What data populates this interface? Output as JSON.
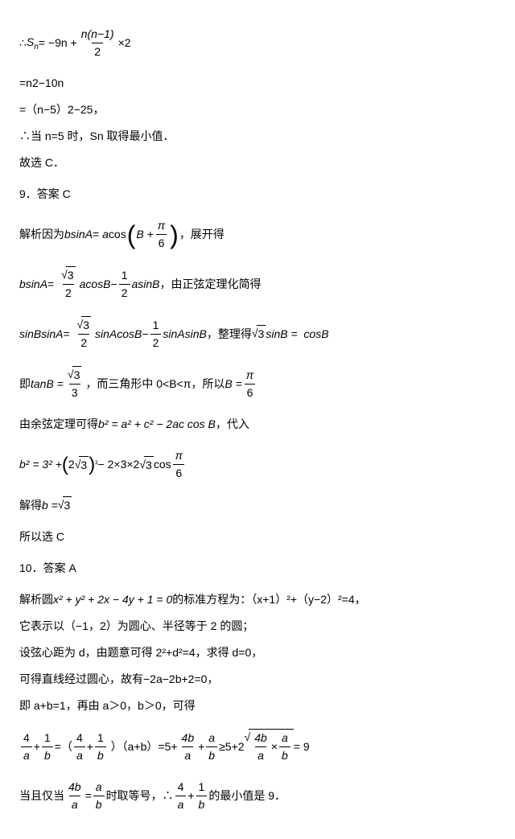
{
  "colors": {
    "text": "#000000",
    "background": "#ffffff"
  },
  "fonts": {
    "body_size_pt": 10.5,
    "family": "Microsoft YaHei"
  },
  "l1a": "∴",
  "l1b": "= −9n +",
  "f1n": "n(n−1)",
  "f1d": "2",
  "l1c": "×2",
  "sn": "S",
  "sub_n": "n",
  "l2": "=n2−10n",
  "l3": "=（n−5）2−25，",
  "l4": "∴当 n=5 时，Sn 取得最小值．",
  "l5": "故选 C．",
  "q9": "9．答案 C",
  "l6a": "解析因为",
  "bsinA": "b",
  "sinA": "sinA",
  "eq": " = ",
  "acos": "a",
  "cos": "cos",
  "B_plus": "B +",
  "pi": "π",
  "six": "6",
  "l6b": "，展开得",
  "l7a": "b",
  "l7eq": " = ",
  "rt3": "3",
  "two": "2",
  "acosB": "acosB",
  "minus": " − ",
  "half_n": "1",
  "half_d": "2",
  "asinB": "asinB",
  "l7b": "，由正弦定理化简得",
  "l8a": "sinBsinA",
  "sinAcosB": "sinAcosB",
  "sinAsinB": "sinAsinB",
  "l8b": "，整理得",
  "sinB_eq": "sinB = ",
  "cosB": "cosB",
  "l9a": "即",
  "tanB": "tanB =",
  "three": "3",
  "l9b": "，而三角形中 0<B<π，所以",
  "B_eq": "B =",
  "l10": "由余弦定理可得",
  "bsq": "b² = a² + c² − 2ac cos B",
  "l10b": "  ，代入",
  "l11a": "b² = 3² +",
  "two_rt3": "2",
  "sq": "²",
  "l11b": " − 2×3×2",
  "cos_pi6": "cos",
  "l12a": "解得",
  "b_eq": "b =",
  "l13": "所以选 C",
  "q10": "10．答案 A",
  "l14a": "解析圆",
  "circ_eq": "x² + y² + 2x − 4y + 1 = 0",
  "l14b": " 的标准方程为：（x+1）²+（y−2）²=4，",
  "l15": "它表示以（−1，2）为圆心、半径等于 2 的圆；",
  "l16": "设弦心距为 d，由题意可得 2²+d²=4，求得 d=0，",
  "l17": "可得直线经过圆心，故有−2a−2b+2=0，",
  "l18": "即 a+b=1，再由 a＞0，b＞0，可得",
  "l19pre": "=（",
  "four": "4",
  "a": "a",
  "one": "1",
  "b": "b",
  "l19mid": "）（a+b）=5+",
  "fourb": "4b",
  "plus": "+",
  "ge": "≥5+2",
  "times": "×",
  "eq9": " = 9",
  "l20a": "当且仅当",
  "l20b": "时取等号，∴",
  "l20c": " 的最小值是 9．"
}
